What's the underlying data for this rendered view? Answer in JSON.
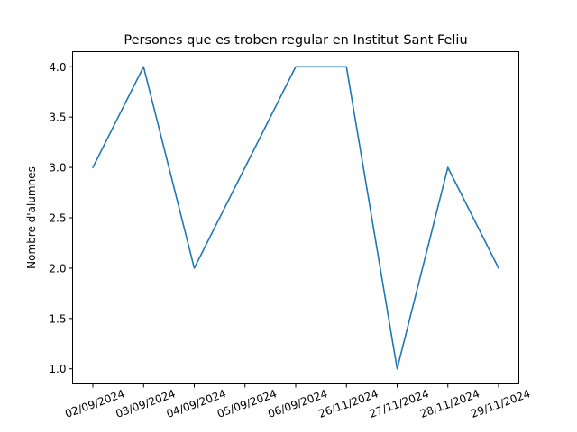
{
  "chart_data": {
    "type": "line",
    "title": "Persones que es troben regular en Institut Sant Feliu",
    "xlabel": "",
    "ylabel": "Nombre d'alumnes",
    "categories": [
      "02/09/2024",
      "03/09/2024",
      "04/09/2024",
      "05/09/2024",
      "06/09/2024",
      "26/11/2024",
      "27/11/2024",
      "28/11/2024",
      "29/11/2024"
    ],
    "series": [
      {
        "values": [
          3.0,
          4.0,
          2.0,
          3.0,
          4.0,
          4.0,
          1.0,
          3.0,
          2.0
        ],
        "color": "#1f77b4"
      }
    ],
    "yticks": [
      "1.0",
      "1.5",
      "2.0",
      "2.5",
      "3.0",
      "3.5",
      "4.0"
    ],
    "ylim": [
      0.85,
      4.15
    ],
    "grid": false,
    "legend": "none"
  }
}
